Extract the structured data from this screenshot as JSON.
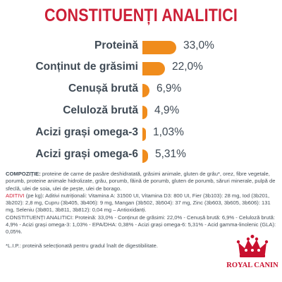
{
  "title": "CONSTITUENȚI ANALITICI",
  "colors": {
    "title": "#cc1f36",
    "bar": "#f08c1c",
    "text": "#3f4a55",
    "logo": "#c8102e"
  },
  "constituents": [
    {
      "label": "Proteină",
      "value_text": "33,0%",
      "value": 33.0
    },
    {
      "label": "Conținut de grăsimi",
      "value_text": "22,0%",
      "value": 22.0
    },
    {
      "label": "Cenușă brută",
      "value_text": "6,9%",
      "value": 6.9
    },
    {
      "label": "Celuloză brută",
      "value_text": "4,9%",
      "value": 4.9
    },
    {
      "label": "Acizi grași omega-3",
      "value_text": "1,03%",
      "value": 1.03
    },
    {
      "label": "Acizi grași omega-6",
      "value_text": "5,31%",
      "value": 5.31
    }
  ],
  "composition": {
    "heading": "COMPOZIȚIE:",
    "body": " proteine de carne de pasăre deshidratată, grăsimi animale, gluten de grâu*, orez, fibre vegetale, porumb, proteine animale hidrolizate, grâu, porumb, făină de porumb, gluten de porumb, săruri minerale, pulpă de sfeclă, ulei de soia, ulei de pește, ulei de borago.",
    "additives_heading": "ADITIVI",
    "additives_body": " (pe kg): Aditivi nutriționali: Vitamina A: 31500 UI, Vitamina D3: 800 UI, Fier (3b103): 28 mg, Iod (3b201, 3b202): 2,8 mg, Cupru (3b405, 3b406): 9 mg, Mangan (3b502, 3b504): 37 mg, Zinc (3b603, 3b605, 3b606): 131 mg, Seleniu (3b801, 3b811, 3b812): 0,04 mg – Antioxidanți.",
    "analytic_summary": "CONSTITUENȚI ANALITICI: Proteină: 33,0% - Conținut de grăsimi: 22,0% - Cenușă brută: 6,9% - Celuloză brută: 4,9% - Acizi grași omega-3: 1,03% - EPA/DHA: 0,38% - Acizi grași omega-6: 5,31% - Acid gamma-linolenic (GLA): 0,05%.",
    "lip_note": "*L.I.P.: proteină selecționată pentru gradul înalt de digestibilitate."
  },
  "logo": {
    "name": "royal-canin-crown-logo",
    "text": "ROYAL CANIN"
  }
}
